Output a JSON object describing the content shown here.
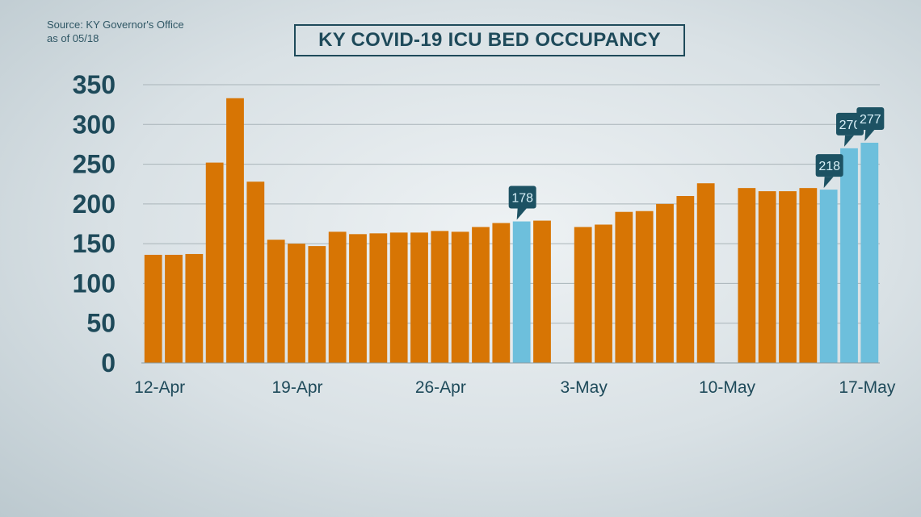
{
  "source_line1": "Source: KY Governor's Office",
  "source_line2": "as of 05/18",
  "title": "KY COVID-19 ICU BED OCCUPANCY",
  "colors": {
    "bar": "#d77504",
    "highlight": "#6dbfdc",
    "axis_text": "#1e4a5a",
    "grid": "#a9b4b9",
    "callout": "#1d5263",
    "callout_text": "#d8f0f8"
  },
  "chart_data": {
    "type": "bar",
    "title": "KY COVID-19 ICU BED OCCUPANCY",
    "xlabel": "",
    "ylabel": "",
    "ylim": [
      0,
      350
    ],
    "yticks": [
      0,
      50,
      100,
      150,
      200,
      250,
      300,
      350
    ],
    "grid": true,
    "x_tick_labels": [
      "12-Apr",
      "19-Apr",
      "26-Apr",
      "3-May",
      "10-May",
      "17-May"
    ],
    "categories": [
      "12-Apr",
      "13-Apr",
      "14-Apr",
      "15-Apr",
      "16-Apr",
      "17-Apr",
      "18-Apr",
      "19-Apr",
      "20-Apr",
      "21-Apr",
      "22-Apr",
      "23-Apr",
      "24-Apr",
      "25-Apr",
      "26-Apr",
      "27-Apr",
      "28-Apr",
      "29-Apr",
      "30-Apr",
      "1-May",
      "2-May",
      "3-May",
      "4-May",
      "5-May",
      "6-May",
      "7-May",
      "8-May",
      "9-May",
      "10-May",
      "11-May",
      "12-May",
      "13-May",
      "14-May",
      "15-May",
      "16-May",
      "17-May"
    ],
    "values": [
      136,
      136,
      137,
      252,
      333,
      228,
      155,
      150,
      147,
      165,
      162,
      163,
      164,
      164,
      166,
      165,
      171,
      176,
      178,
      179,
      null,
      171,
      174,
      190,
      191,
      200,
      210,
      226,
      null,
      220,
      216,
      216,
      220,
      218,
      270,
      277
    ],
    "highlighted": [
      18,
      33,
      34,
      35
    ],
    "callouts": [
      {
        "index": 18,
        "label": "178"
      },
      {
        "index": 33,
        "label": "218"
      },
      {
        "index": 34,
        "label": "270"
      },
      {
        "index": 35,
        "label": "277"
      }
    ]
  }
}
